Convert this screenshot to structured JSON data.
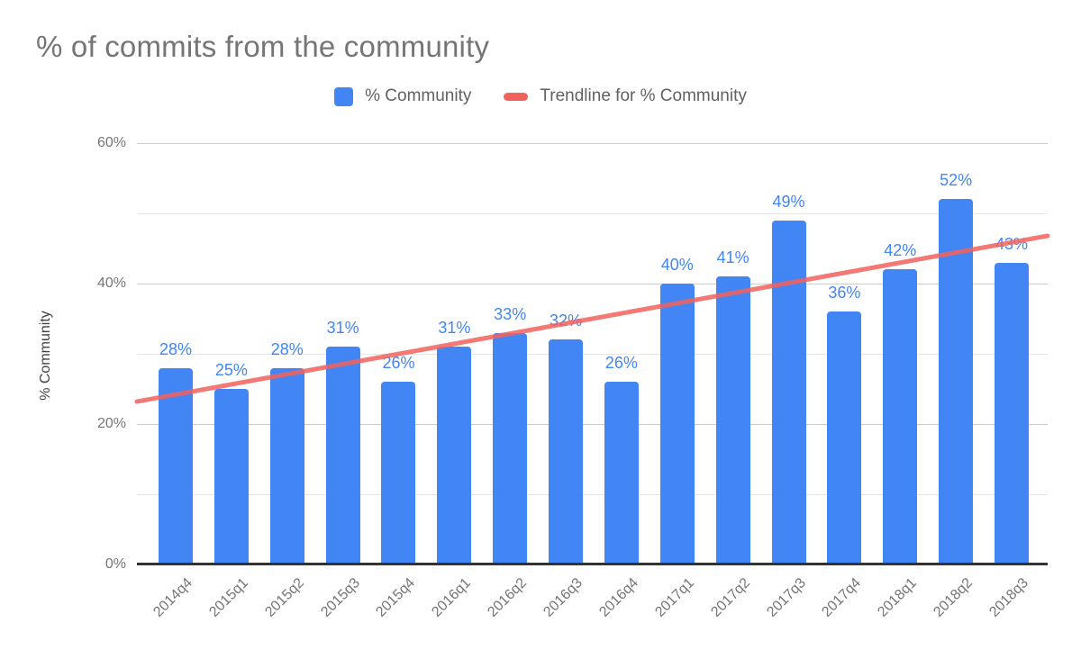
{
  "title": "% of commits from the community",
  "legend": [
    {
      "label": "% Community",
      "swatch": "square-icon",
      "color": "#4285f4"
    },
    {
      "label": "Trendline for % Community",
      "swatch": "dash-icon",
      "color": "#f2615c"
    }
  ],
  "chart_data": {
    "type": "bar",
    "title": "% of commits from the community",
    "categories": [
      "2014q4",
      "2015q1",
      "2015q2",
      "2015q3",
      "2015q4",
      "2016q1",
      "2016q2",
      "2016q3",
      "2016q4",
      "2017q1",
      "2017q2",
      "2017q3",
      "2017q4",
      "2018q1",
      "2018q2",
      "2018q3"
    ],
    "series": [
      {
        "name": "% Community",
        "values": [
          28,
          25,
          28,
          31,
          26,
          31,
          33,
          32,
          26,
          40,
          41,
          49,
          36,
          42,
          52,
          43
        ]
      }
    ],
    "data_labels": [
      "28%",
      "25%",
      "28%",
      "31%",
      "26%",
      "31%",
      "33%",
      "32%",
      "26%",
      "40%",
      "41%",
      "49%",
      "36%",
      "42%",
      "52%",
      "43%"
    ],
    "trendline": {
      "name": "Trendline for % Community",
      "start_pct": 23.2,
      "end_pct": 46.8
    },
    "xlabel": "",
    "ylabel": "% Community",
    "ylim": [
      0,
      60
    ],
    "yticks": [
      {
        "pct": 0,
        "label": "0%"
      },
      {
        "pct": 20,
        "label": "20%"
      },
      {
        "pct": 40,
        "label": "40%"
      },
      {
        "pct": 60,
        "label": "60%"
      }
    ],
    "gridlines": [
      {
        "pct": 10,
        "major": false
      },
      {
        "pct": 20,
        "major": true
      },
      {
        "pct": 30,
        "major": false
      },
      {
        "pct": 40,
        "major": true
      },
      {
        "pct": 50,
        "major": false
      },
      {
        "pct": 60,
        "major": true
      }
    ],
    "legend_position": "top",
    "colors": {
      "bar": "#4285f4",
      "trend": "#f2615c",
      "data_label": "#4285f4",
      "tick_text": "#757575",
      "title_text": "#757575",
      "axis_title_text": "#424242",
      "gridline_major": "#cccccc",
      "gridline_minor": "#e6e6e6",
      "baseline": "#333333"
    }
  }
}
